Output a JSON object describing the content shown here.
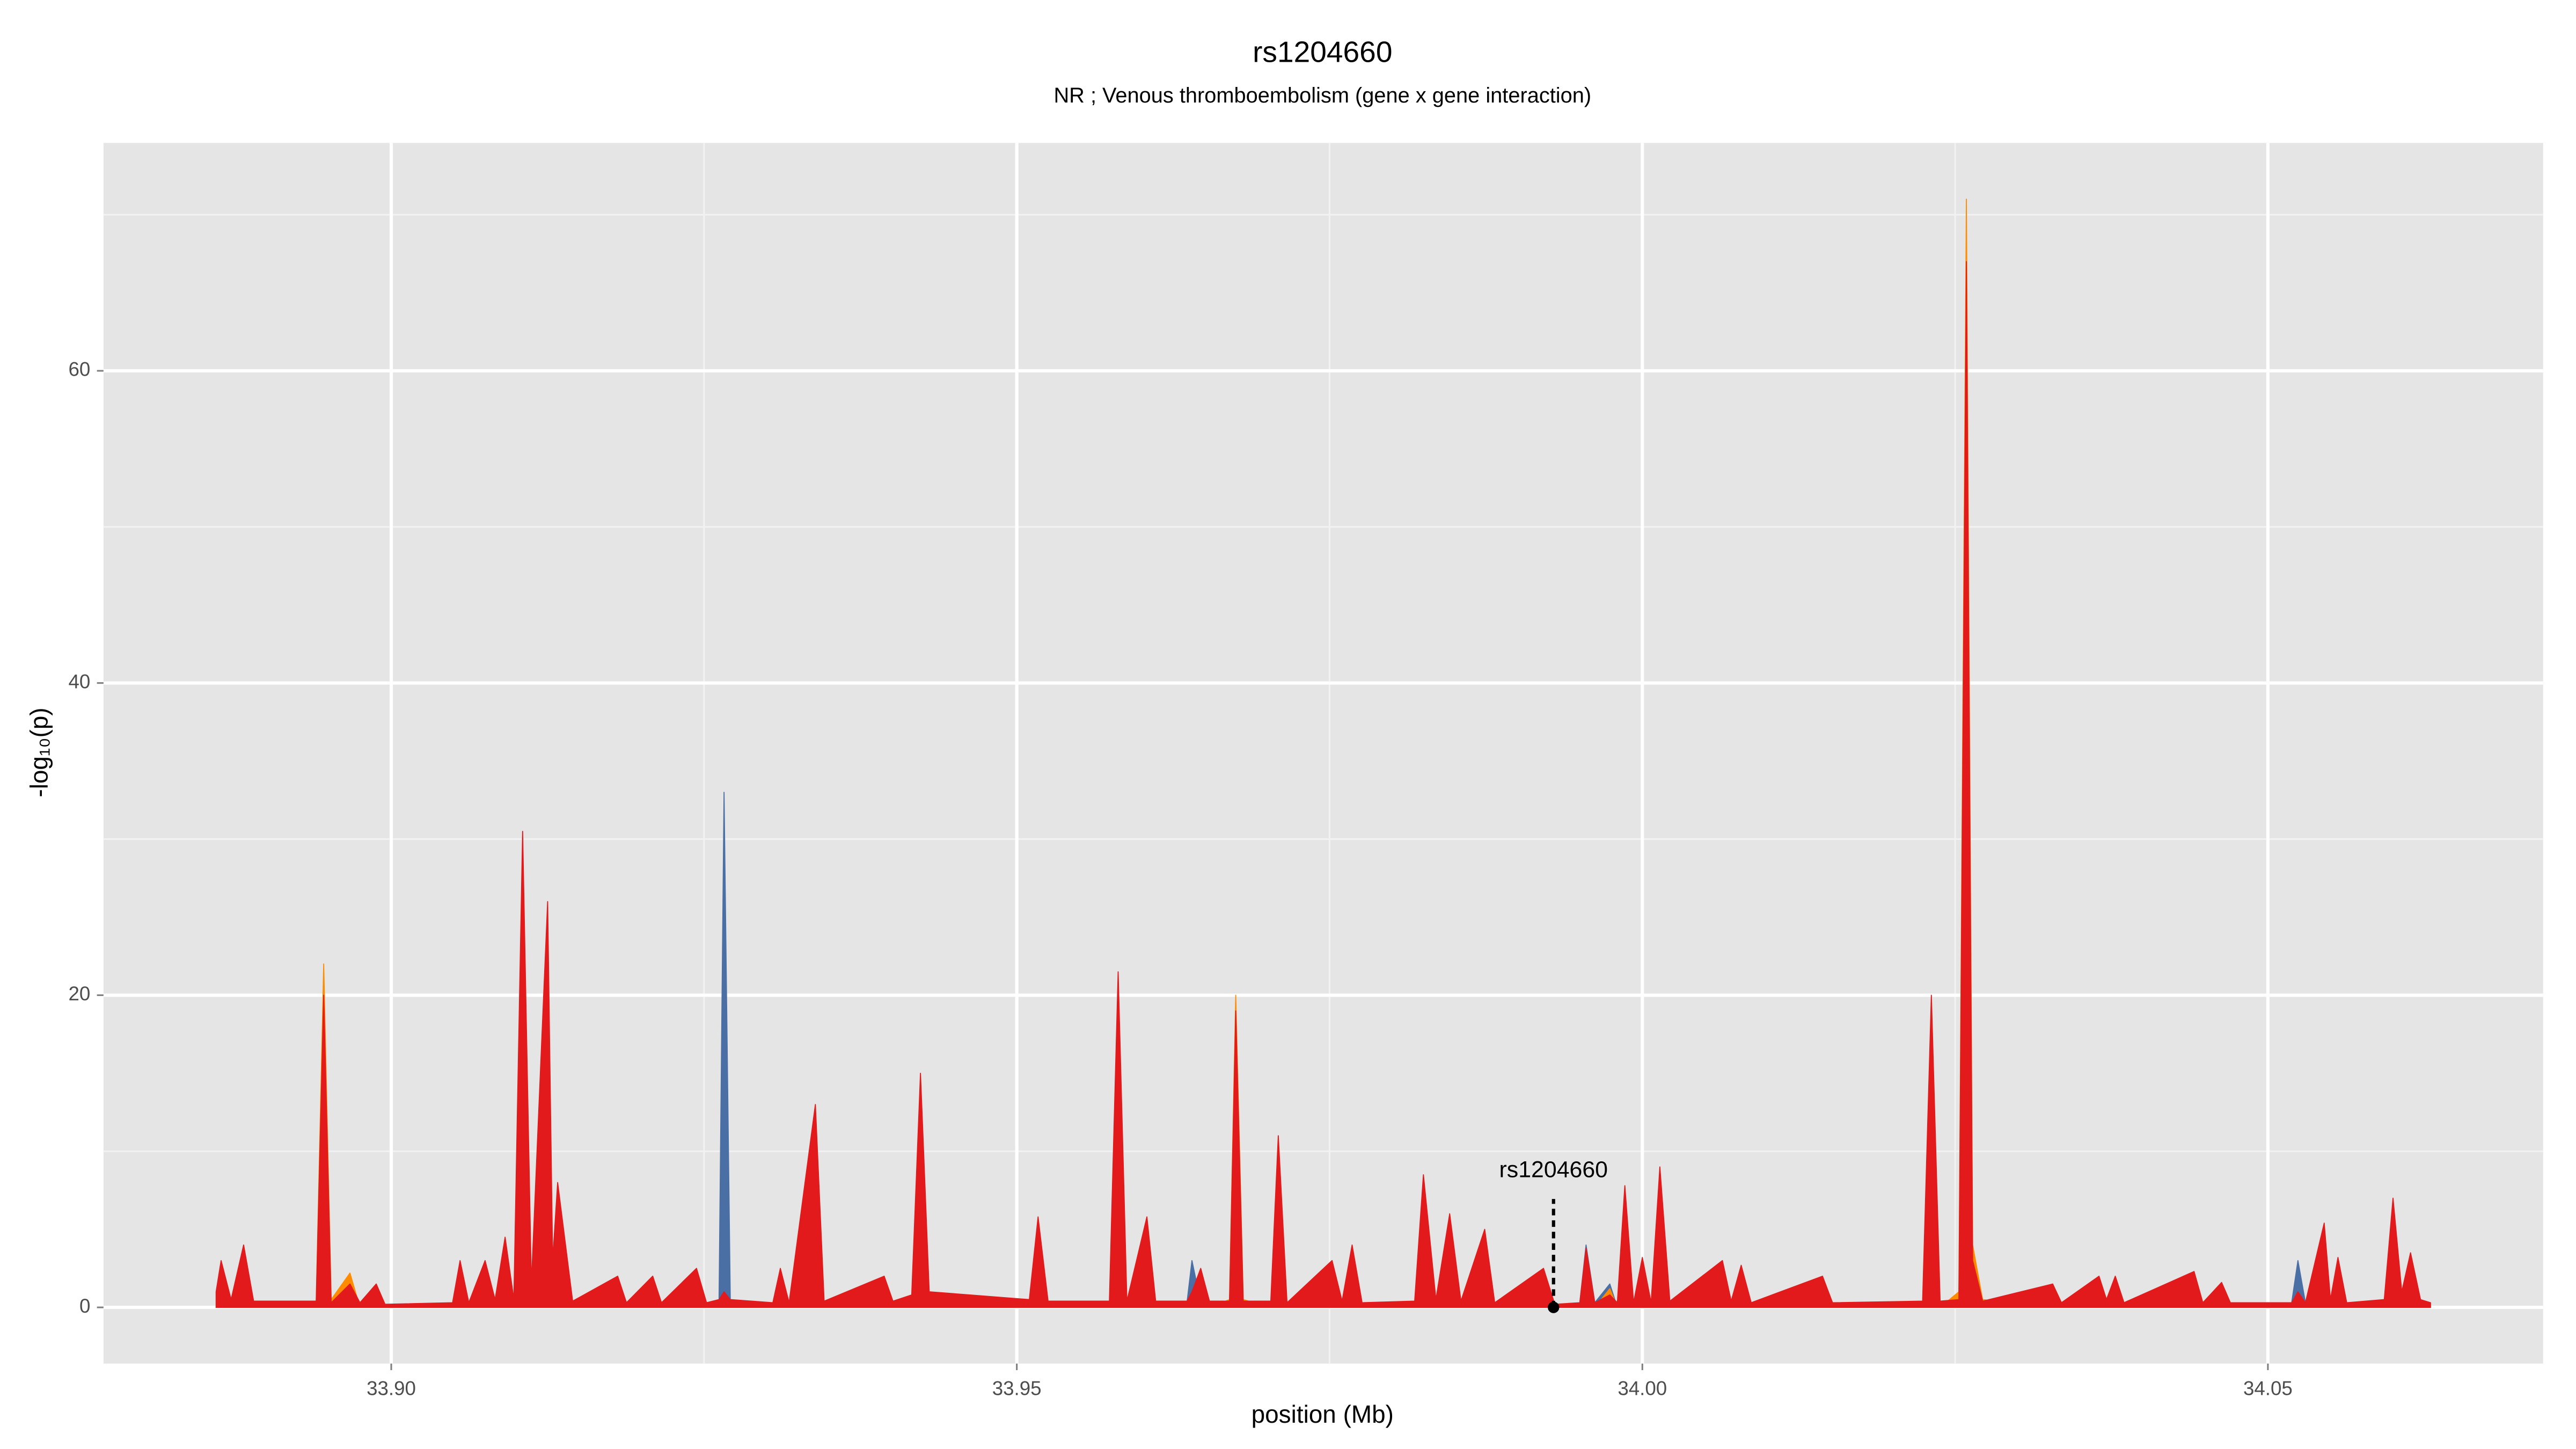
{
  "chart_data": {
    "type": "area",
    "title": "rs1204660",
    "subtitle": "NR ; Venous thromboembolism (gene x gene interaction)",
    "xlabel": "position (Mb)",
    "ylabel": "-log₁₀(p)",
    "xlim": [
      33.877,
      34.072
    ],
    "ylim": [
      -3.6,
      74.6
    ],
    "xticks": [
      {
        "value": 33.9,
        "label": "33.90"
      },
      33.95,
      {
        "value": 34,
        "label": "34.00"
      },
      34.05
    ],
    "yticks": [
      0,
      20,
      40,
      60
    ],
    "grid": true,
    "x": [
      33.886,
      33.8864,
      33.8872,
      33.8882,
      33.889,
      33.894,
      33.8946,
      33.8952,
      33.8967,
      33.8975,
      33.8988,
      33.8995,
      33.9049,
      33.9055,
      33.9062,
      33.9075,
      33.9083,
      33.9091,
      33.9098,
      33.9105,
      33.9112,
      33.9125,
      33.9129,
      33.9133,
      33.9145,
      33.9181,
      33.9188,
      33.9209,
      33.9216,
      33.9244,
      33.9252,
      33.9262,
      33.9266,
      33.9271,
      33.9305,
      33.9311,
      33.9318,
      33.9339,
      33.9346,
      33.9394,
      33.9401,
      33.9416,
      33.9423,
      33.943,
      33.951,
      33.9517,
      33.9525,
      33.9574,
      33.9581,
      33.9588,
      33.9604,
      33.9611,
      33.9636,
      33.964,
      33.9647,
      33.9654,
      33.967,
      33.9675,
      33.9681,
      33.9703,
      33.9709,
      33.9716,
      33.9752,
      33.976,
      33.9768,
      33.9776,
      33.9818,
      33.9825,
      33.9835,
      33.9846,
      33.9855,
      33.9874,
      33.9882,
      33.9921,
      33.993,
      33.995,
      33.9955,
      33.9962,
      33.9974,
      33.998,
      33.9986,
      33.9993,
      34.0,
      34.0007,
      34.0014,
      34.0022,
      34.0064,
      34.0071,
      34.0079,
      34.0087,
      34.0144,
      34.0152,
      34.0224,
      34.0231,
      34.0238,
      34.0253,
      34.0259,
      34.0264,
      34.0272,
      34.0328,
      34.0335,
      34.0365,
      34.0371,
      34.0378,
      34.0385,
      34.0441,
      34.0448,
      34.0463,
      34.047,
      34.0519,
      34.0524,
      34.053,
      34.0545,
      34.055,
      34.0556,
      34.0563,
      34.0593,
      34.06,
      34.0607,
      34.0614,
      34.0622,
      34.063
    ],
    "series": [
      {
        "color": "#4a6fa5",
        "values": [
          0,
          0,
          0,
          0,
          0,
          0,
          0,
          0,
          0,
          0,
          0,
          0,
          0,
          0,
          0,
          0,
          0,
          0,
          0,
          0,
          0,
          0,
          0,
          0,
          0,
          0,
          0,
          0,
          0,
          0,
          0,
          0.5,
          33,
          0.5,
          0,
          0,
          0,
          0,
          0,
          0,
          0,
          0,
          0,
          0,
          0,
          0,
          0,
          0,
          0,
          0,
          0,
          0,
          0.3,
          3,
          0.3,
          0,
          0,
          0,
          0,
          0,
          0,
          0,
          0,
          0,
          0,
          0,
          0,
          0,
          0,
          0,
          0,
          0,
          0,
          0,
          0,
          0.3,
          4,
          0.3,
          1.5,
          0,
          0,
          0,
          0,
          0,
          0,
          0,
          0,
          0,
          0,
          0,
          0,
          0,
          0,
          0,
          0,
          0,
          0,
          0,
          0,
          0,
          0,
          0,
          0,
          0,
          0,
          0,
          0,
          0,
          0,
          0.3,
          3,
          0.3,
          0,
          0,
          0,
          0,
          0,
          0,
          0,
          0,
          0,
          0
        ]
      },
      {
        "color": "#ff8c00",
        "values": [
          0,
          0,
          0,
          0,
          0,
          0.3,
          22,
          0.5,
          2.2,
          0,
          0,
          0,
          0,
          0,
          0,
          0,
          0,
          0,
          0,
          0,
          0,
          0,
          0,
          0,
          0,
          0,
          0,
          0,
          0,
          0,
          0,
          0,
          0,
          0,
          0,
          0,
          0,
          0,
          0,
          0,
          0,
          0,
          0,
          0,
          0,
          0,
          0,
          0,
          0,
          0,
          0,
          0,
          0,
          0,
          0,
          0,
          0.5,
          20,
          0.5,
          0,
          0,
          0,
          0,
          0,
          0,
          0,
          0,
          0,
          0,
          0,
          0,
          0,
          0,
          0,
          0,
          0,
          0,
          0,
          1.2,
          0,
          0,
          0,
          0,
          0,
          0,
          0,
          0,
          0,
          0,
          0,
          0,
          0,
          0,
          0,
          0,
          1,
          71,
          4,
          0.5,
          0,
          0,
          0,
          0,
          0,
          0,
          0,
          0,
          0,
          0,
          0,
          0,
          0,
          0,
          0,
          0,
          0,
          0,
          0,
          0,
          0,
          0,
          0
        ]
      },
      {
        "color": "#e31a1c",
        "values": [
          1,
          3,
          0.5,
          4,
          0.4,
          0.4,
          20,
          0.3,
          1.5,
          0.3,
          1.5,
          0.2,
          0.3,
          3,
          0.3,
          3,
          0.5,
          4.5,
          0.5,
          30.5,
          1.5,
          26,
          3,
          8,
          0.4,
          2,
          0.3,
          2,
          0.3,
          2.5,
          0.3,
          0.5,
          1,
          0.5,
          0.3,
          2.5,
          0.3,
          13,
          0.4,
          2,
          0.4,
          0.8,
          15,
          1,
          0.5,
          5.8,
          0.4,
          0.4,
          21.5,
          0.4,
          5.8,
          0.4,
          0.4,
          1,
          2.5,
          0.4,
          0.4,
          19,
          0.4,
          0.4,
          11,
          0.3,
          3,
          0.4,
          4,
          0.3,
          0.4,
          8.5,
          0.5,
          6,
          0.4,
          5,
          0.3,
          2.5,
          0.2,
          0.3,
          3.8,
          0.3,
          0.8,
          0.3,
          7.8,
          0.3,
          3.2,
          0.3,
          9,
          0.4,
          3,
          0.4,
          2.7,
          0.3,
          2,
          0.3,
          0.4,
          20,
          0.4,
          0.5,
          67,
          3,
          0.4,
          1.5,
          0.3,
          2,
          0.5,
          2,
          0.3,
          2.3,
          0.3,
          1.6,
          0.3,
          0.3,
          1,
          0.3,
          5.4,
          0.5,
          3.2,
          0.3,
          0.5,
          7,
          1,
          3.5,
          0.5,
          0.3
        ]
      }
    ],
    "annotations": [
      {
        "label": "rs1204660",
        "x": 33.9929,
        "y": 0
      }
    ]
  }
}
